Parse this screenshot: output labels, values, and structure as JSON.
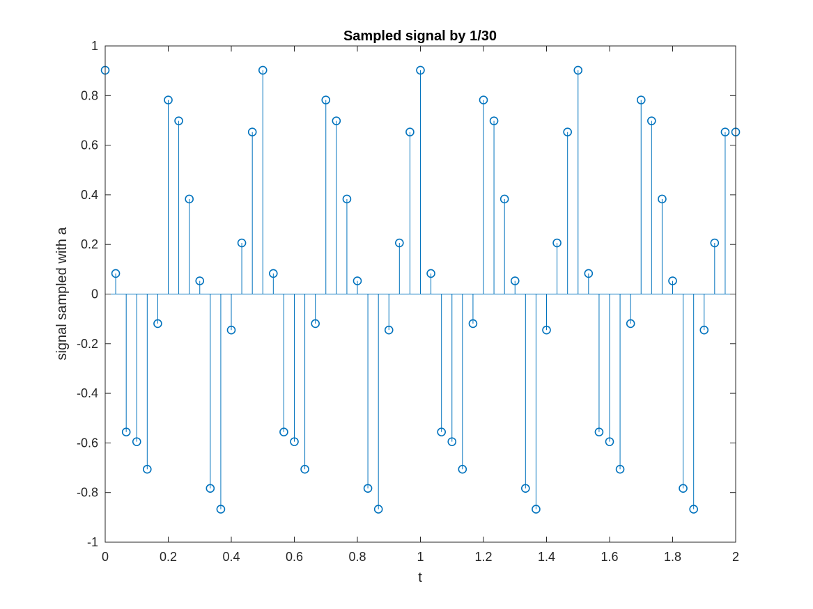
{
  "chart_data": {
    "type": "stem",
    "title": "Sampled signal by 1/30",
    "xlabel": "t",
    "ylabel": "signal sampled with a",
    "xlim": [
      0,
      2
    ],
    "ylim": [
      -1,
      1
    ],
    "x_ticks": [
      "0",
      "0.2",
      "0.4",
      "0.6",
      "0.8",
      "1",
      "1.2",
      "1.4",
      "1.6",
      "1.8",
      "2"
    ],
    "y_ticks": [
      "-1",
      "-0.8",
      "-0.6",
      "-0.4",
      "-0.2",
      "0",
      "0.2",
      "0.4",
      "0.6",
      "0.8",
      "1"
    ],
    "grid": false,
    "series_color": "#0072BD",
    "x": [
      0,
      0.0333,
      0.0667,
      0.1,
      0.1333,
      0.1667,
      0.2,
      0.2333,
      0.2667,
      0.3,
      0.3333,
      0.3667,
      0.4,
      0.4333,
      0.4667,
      0.5,
      0.5333,
      0.5667,
      0.6,
      0.6333,
      0.6667,
      0.7,
      0.7333,
      0.7667,
      0.8,
      0.8333,
      0.8667,
      0.9,
      0.9333,
      0.9667,
      1.0,
      1.0333,
      1.0667,
      1.1,
      1.1333,
      1.1667,
      1.2,
      1.2333,
      1.2667,
      1.3,
      1.3333,
      1.3667,
      1.4,
      1.4333,
      1.4667,
      1.5,
      1.5333,
      1.5667,
      1.6,
      1.6333,
      1.6667,
      1.7,
      1.7333,
      1.7667,
      1.8,
      1.8333,
      1.8667,
      1.9,
      1.9333,
      1.9667,
      2.0
    ],
    "values": [
      0.902,
      0.083,
      -0.556,
      -0.595,
      -0.706,
      -0.119,
      0.782,
      0.698,
      0.383,
      0.053,
      -0.783,
      -0.867,
      -0.145,
      0.206,
      0.653,
      0.902,
      0.083,
      -0.556,
      -0.595,
      -0.706,
      -0.119,
      0.782,
      0.698,
      0.383,
      0.053,
      -0.783,
      -0.867,
      -0.145,
      0.206,
      0.653,
      0.902,
      0.083,
      -0.556,
      -0.595,
      -0.706,
      -0.119,
      0.782,
      0.698,
      0.383,
      0.053,
      -0.783,
      -0.867,
      -0.145,
      0.206,
      0.653,
      0.902,
      0.083,
      -0.556,
      -0.595,
      -0.706,
      -0.119,
      0.782,
      0.698,
      0.383,
      0.053,
      -0.783,
      -0.867,
      -0.145,
      0.206,
      0.653,
      0.653
    ]
  }
}
